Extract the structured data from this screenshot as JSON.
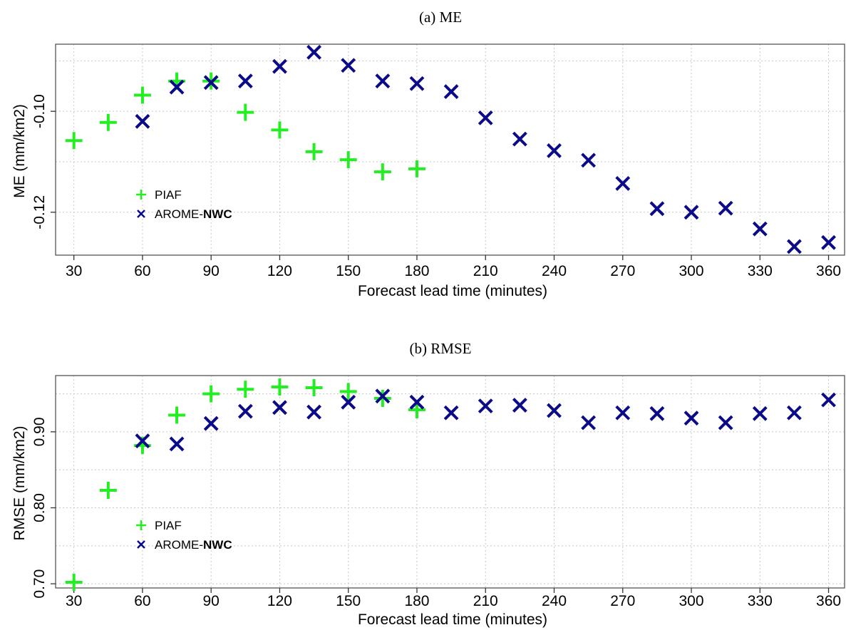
{
  "colors": {
    "piaf": "#22ee22",
    "arome": "#0b0b8a"
  },
  "chart_data": [
    {
      "type": "scatter",
      "title": "(a) ME",
      "xlabel": "Forecast lead time (minutes)",
      "ylabel": "ME (mm/km2)",
      "xlim": [
        22,
        367
      ],
      "ylim": [
        -0.1285,
        -0.0867
      ],
      "xticks": [
        30,
        60,
        90,
        120,
        150,
        180,
        210,
        240,
        270,
        300,
        330,
        360
      ],
      "xtick_labels": [
        "30",
        "60",
        "90",
        "120",
        "150",
        "180",
        "210",
        "240",
        "270",
        "300",
        "330",
        "360"
      ],
      "yticks": [
        -0.1,
        -0.12
      ],
      "ytick_labels": [
        "-0.10",
        "-0.12"
      ],
      "ygrid": [
        -0.09,
        -0.1,
        -0.11,
        -0.12
      ],
      "grid": true,
      "legend_placement": "lower-left",
      "series": [
        {
          "name": "PIAF",
          "marker": "plus",
          "x": [
            30,
            45,
            60,
            75,
            90,
            105,
            120,
            135,
            150,
            165,
            180
          ],
          "y": [
            -0.1058,
            -0.1022,
            -0.0968,
            -0.094,
            -0.094,
            -0.1002,
            -0.1037,
            -0.108,
            -0.1096,
            -0.112,
            -0.1114
          ]
        },
        {
          "name": "AROME-NWC",
          "name_parts": [
            "AROME-",
            "NWC"
          ],
          "marker": "x",
          "x": [
            60,
            75,
            90,
            105,
            120,
            135,
            150,
            165,
            180,
            195,
            210,
            225,
            240,
            255,
            270,
            285,
            300,
            315,
            330,
            345,
            360
          ],
          "y": [
            -0.102,
            -0.0952,
            -0.0943,
            -0.094,
            -0.0911,
            -0.0883,
            -0.0909,
            -0.094,
            -0.0945,
            -0.0961,
            -0.1013,
            -0.1055,
            -0.1078,
            -0.1097,
            -0.1143,
            -0.1193,
            -0.12,
            -0.1192,
            -0.1233,
            -0.1268,
            -0.126
          ]
        }
      ]
    },
    {
      "type": "scatter",
      "title": "(b) RMSE",
      "xlabel": "Forecast lead time (minutes)",
      "ylabel": "RMSE (mm/km2)",
      "xlim": [
        22,
        367
      ],
      "ylim": [
        0.6945,
        0.974
      ],
      "xticks": [
        30,
        60,
        90,
        120,
        150,
        180,
        210,
        240,
        270,
        300,
        330,
        360
      ],
      "xtick_labels": [
        "30",
        "60",
        "90",
        "120",
        "150",
        "180",
        "210",
        "240",
        "270",
        "300",
        "330",
        "360"
      ],
      "yticks": [
        0.7,
        0.8,
        0.9
      ],
      "ytick_labels": [
        "0.70",
        "0.80",
        "0.90"
      ],
      "ygrid": [
        0.7,
        0.75,
        0.8,
        0.85,
        0.9,
        0.95
      ],
      "grid": true,
      "legend_placement": "lower-left",
      "series": [
        {
          "name": "PIAF",
          "marker": "plus",
          "x": [
            30,
            45,
            60,
            75,
            90,
            105,
            120,
            135,
            150,
            165,
            180
          ],
          "y": [
            0.702,
            0.823,
            0.882,
            0.922,
            0.95,
            0.956,
            0.959,
            0.958,
            0.953,
            0.944,
            0.929
          ]
        },
        {
          "name": "AROME-NWC",
          "name_parts": [
            "AROME-",
            "NWC"
          ],
          "marker": "x",
          "x": [
            60,
            75,
            90,
            105,
            120,
            135,
            150,
            165,
            180,
            195,
            210,
            225,
            240,
            255,
            270,
            285,
            300,
            315,
            330,
            345,
            360
          ],
          "y": [
            0.888,
            0.884,
            0.911,
            0.927,
            0.932,
            0.926,
            0.939,
            0.947,
            0.939,
            0.925,
            0.934,
            0.935,
            0.928,
            0.912,
            0.925,
            0.924,
            0.918,
            0.912,
            0.924,
            0.925,
            0.942
          ]
        }
      ]
    }
  ]
}
